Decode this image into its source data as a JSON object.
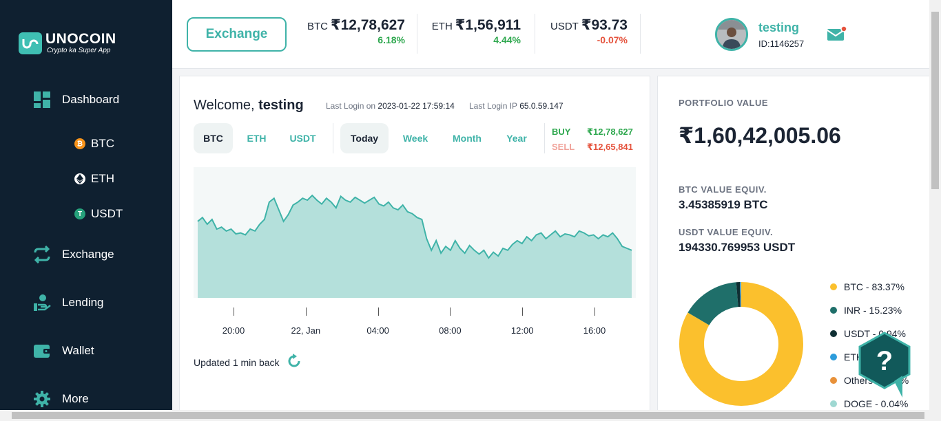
{
  "brand": {
    "name": "UNOCOIN",
    "tagline": "Crypto ka Super App"
  },
  "sidebar": {
    "items": [
      {
        "label": "Dashboard",
        "icon": "dashboard-grid-icon"
      },
      {
        "label": "Exchange",
        "icon": "exchange-arrows-icon"
      },
      {
        "label": "Lending",
        "icon": "lending-hand-icon"
      },
      {
        "label": "Wallet",
        "icon": "wallet-icon"
      },
      {
        "label": "More",
        "icon": "gear-icon"
      }
    ],
    "sub_items": [
      {
        "label": "BTC",
        "icon": "btc-coin-icon",
        "color": "#f7931a"
      },
      {
        "label": "ETH",
        "icon": "eth-coin-icon",
        "color": "#ffffff"
      },
      {
        "label": "USDT",
        "icon": "usdt-coin-icon",
        "color": "#26a17b"
      }
    ]
  },
  "header": {
    "exchange_label": "Exchange",
    "tickers": [
      {
        "symbol": "BTC",
        "price": "₹12,78,627",
        "change": "6.18%",
        "color": "#2fa84f"
      },
      {
        "symbol": "ETH",
        "price": "₹1,56,911",
        "change": "4.44%",
        "color": "#2fa84f"
      },
      {
        "symbol": "USDT",
        "price": "₹93.73",
        "change": "-0.07%",
        "color": "#e5533d"
      }
    ],
    "user": {
      "name": "testing",
      "id": "ID:1146257"
    }
  },
  "welcome": {
    "prefix": "Welcome,",
    "name": "testing",
    "last_login_label": "Last Login on",
    "last_login_value": "2023-01-22 17:59:14",
    "last_ip_label": "Last Login IP",
    "last_ip_value": "65.0.59.147"
  },
  "coin_tabs": [
    "BTC",
    "ETH",
    "USDT"
  ],
  "period_tabs": [
    "Today",
    "Week",
    "Month",
    "Year"
  ],
  "rates": {
    "buy_label": "BUY",
    "buy_value": "₹12,78,627",
    "sell_label": "SELL",
    "sell_value": "₹12,65,841"
  },
  "chart_data": {
    "type": "area",
    "title": "",
    "xlabel": "",
    "ylabel": "",
    "x_ticks": [
      "20:00",
      "22, Jan",
      "04:00",
      "08:00",
      "12:00",
      "16:00"
    ],
    "y_relative": [
      0.58,
      0.62,
      0.55,
      0.6,
      0.5,
      0.52,
      0.48,
      0.5,
      0.45,
      0.46,
      0.44,
      0.5,
      0.48,
      0.55,
      0.6,
      0.78,
      0.82,
      0.7,
      0.58,
      0.65,
      0.75,
      0.78,
      0.82,
      0.8,
      0.85,
      0.8,
      0.76,
      0.82,
      0.78,
      0.72,
      0.84,
      0.8,
      0.78,
      0.83,
      0.8,
      0.77,
      0.8,
      0.83,
      0.76,
      0.74,
      0.78,
      0.72,
      0.7,
      0.75,
      0.68,
      0.66,
      0.62,
      0.6,
      0.4,
      0.28,
      0.38,
      0.25,
      0.32,
      0.28,
      0.38,
      0.3,
      0.25,
      0.33,
      0.28,
      0.24,
      0.28,
      0.2,
      0.26,
      0.22,
      0.3,
      0.28,
      0.34,
      0.38,
      0.35,
      0.42,
      0.38,
      0.44,
      0.46,
      0.4,
      0.44,
      0.48,
      0.42,
      0.45,
      0.44,
      0.42,
      0.48,
      0.46,
      0.43,
      0.44,
      0.4,
      0.44,
      0.42,
      0.46,
      0.4,
      0.32,
      0.3,
      0.28
    ],
    "grid": false
  },
  "updated_text": "Updated 1 min back",
  "portfolio": {
    "label": "PORTFOLIO VALUE",
    "value": "₹1,60,42,005.06",
    "btc_label": "BTC VALUE EQUIV.",
    "btc_value": "3.45385919 BTC",
    "usdt_label": "USDT VALUE EQUIV.",
    "usdt_value": "194330.769953 USDT",
    "allocation": {
      "type": "pie",
      "legend": [
        {
          "label": "BTC - 83.37%",
          "value": 83.37,
          "color": "#fbc02d"
        },
        {
          "label": "INR - 15.23%",
          "value": 15.23,
          "color": "#1f6f6a"
        },
        {
          "label": "USDT - 0.94%",
          "value": 0.94,
          "color": "#0f2f33"
        },
        {
          "label": "ETH",
          "value": 0.3,
          "color": "#2d9cdb"
        },
        {
          "label": "Others - 0.05%",
          "value": 0.05,
          "color": "#e8913a"
        },
        {
          "label": "DOGE - 0.04%",
          "value": 0.04,
          "color": "#9fd8d2"
        }
      ]
    }
  },
  "colors": {
    "accent": "#3fb3a8",
    "sidebar": "#0f2030",
    "positive": "#2fa84f",
    "negative": "#e5533d"
  }
}
